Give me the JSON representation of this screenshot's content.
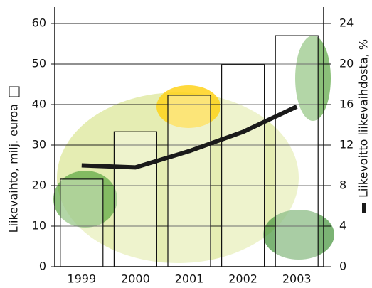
{
  "chart_data": {
    "type": "bar_line",
    "categories": [
      "1999",
      "2000",
      "2001",
      "2002",
      "2003"
    ],
    "series": [
      {
        "name": "Liikevaihto, milj. euroa",
        "type": "bar",
        "color": "#ffffff",
        "values": [
          21.6,
          33.3,
          42.3,
          49.8,
          57.0
        ]
      },
      {
        "name": "Liikevoitto liikevaihdosta, %",
        "type": "line",
        "axis": "y2",
        "color": "#1a1a1a",
        "values": [
          10.0,
          9.8,
          11.4,
          13.3,
          15.8
        ]
      }
    ],
    "ylim": [
      0,
      60
    ],
    "yticks": [
      0,
      10,
      20,
      30,
      40,
      50,
      60
    ],
    "y2lim": [
      0,
      24
    ],
    "y2ticks": [
      0,
      4,
      8,
      12,
      16,
      20,
      24
    ],
    "grid": true
  }
}
